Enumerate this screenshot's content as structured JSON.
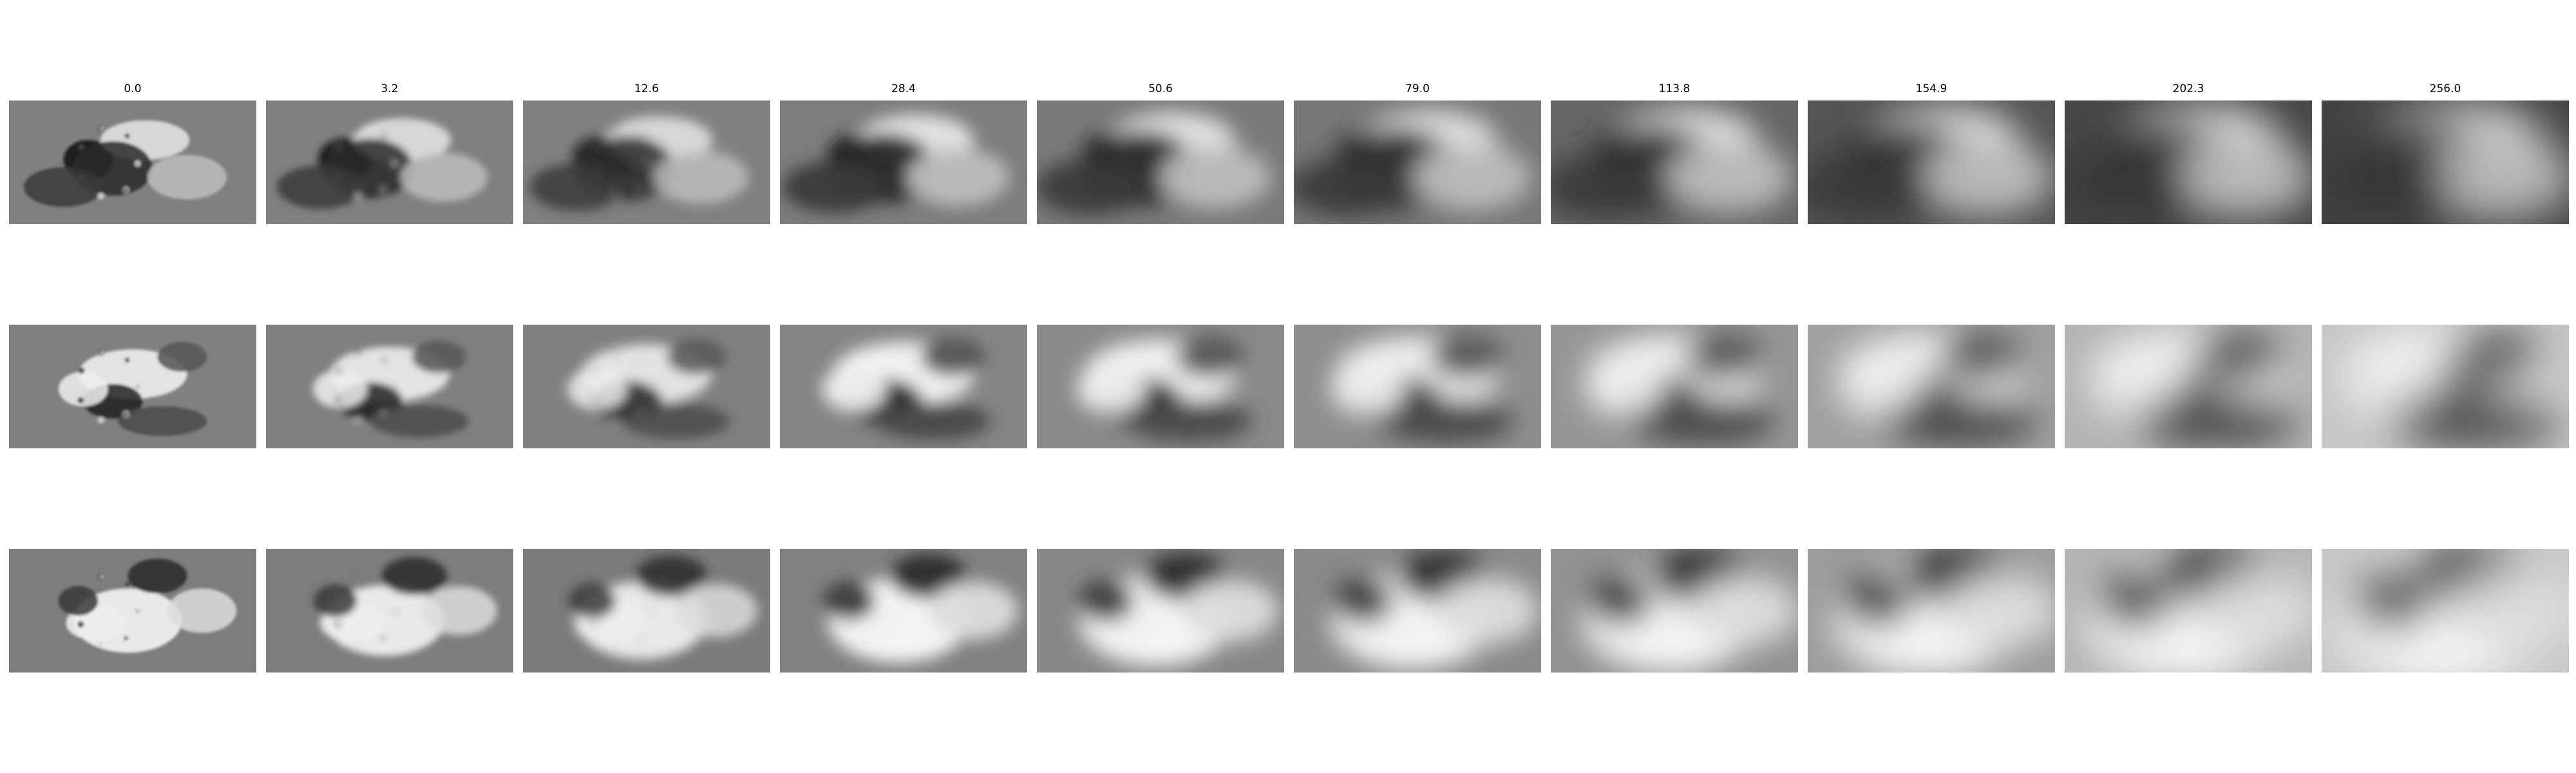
{
  "figure": {
    "column_titles": [
      "0.0",
      "3.2",
      "12.6",
      "28.4",
      "50.6",
      "79.0",
      "113.8",
      "154.9",
      "202.3",
      "256.0"
    ],
    "row_count": 3,
    "colormap": "gray",
    "background_color": "#ffffff",
    "panel_base_color": "#808080",
    "rows": [
      {
        "description_tone": "darkening",
        "base_gray": [
          "#808080",
          "#808080",
          "#808080",
          "#7d7d7d",
          "#7a7a7a",
          "#777777",
          "#666666",
          "#555555",
          "#474747",
          "#444444"
        ]
      },
      {
        "description_tone": "brightening",
        "base_gray": [
          "#808080",
          "#808080",
          "#808080",
          "#858585",
          "#8a8a8a",
          "#8e8e8e",
          "#969696",
          "#a0a0a0",
          "#b4b4b4",
          "#c6c6c6"
        ]
      },
      {
        "description_tone": "brightening",
        "base_gray": [
          "#7d7d7d",
          "#7d7d7d",
          "#7b7b7b",
          "#828282",
          "#888888",
          "#8a8a8a",
          "#929292",
          "#9d9d9d",
          "#b5b5b5",
          "#c8c8c8"
        ]
      }
    ]
  }
}
